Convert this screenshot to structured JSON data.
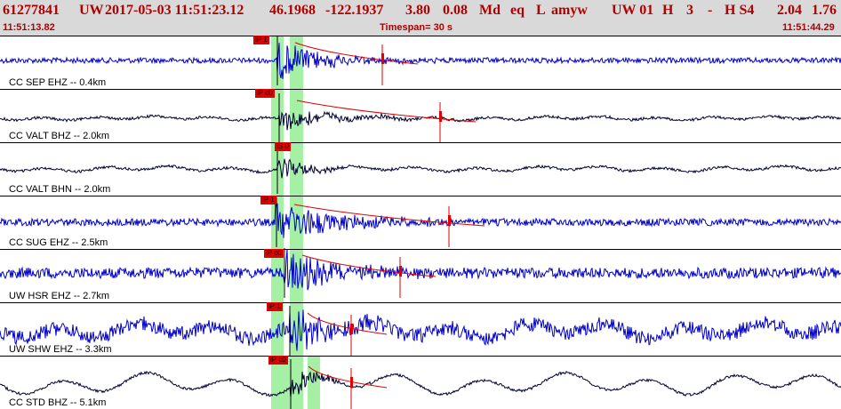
{
  "header": {
    "event_id": "61277841",
    "network": "UW",
    "datetime": "2017-05-03 11:51:23.12",
    "lat": "46.1968",
    "lon": "-122.1937",
    "depth": "3.80",
    "mag": "0.08",
    "magtype": "Md",
    "etype": "eq",
    "flag": "L",
    "author": "amyw",
    "tail1": "UW 01",
    "tail2": "H",
    "tail3": "3",
    "tail4": "-",
    "tail5": "H S4",
    "tail6": "2.04",
    "tail7": "1.76"
  },
  "time_bar": {
    "start": "11:51:13.82",
    "timespan": "Timespan=  30 s",
    "end": "11:51:44.29"
  },
  "colors": {
    "header_bg": "#d9d9d9",
    "header_text": "#b00000",
    "trace_blue": "#0000cc",
    "trace_dark": "#000033",
    "pick_red": "#e00000",
    "band_green": "#a6f0a6"
  },
  "traces": [
    {
      "label": "CC SEP EHZ -- 0.4km",
      "pick": "iP 1",
      "color": "blue"
    },
    {
      "label": "CC VALT BHZ -- 2.0km",
      "pick": "iP c0",
      "color": "dark"
    },
    {
      "label": "CC VALT BHN -- 2.0km",
      "pick": "iS 0",
      "color": "dark"
    },
    {
      "label": "CC SUG EHZ -- 2.5km",
      "pick": "iP 1",
      "color": "blue"
    },
    {
      "label": "UW HSR EHZ -- 2.7km",
      "pick": "iP c0",
      "color": "blue"
    },
    {
      "label": "UW SHW EHZ -- 3.3km",
      "pick": "iP 1",
      "color": "blue"
    },
    {
      "label": "CC STD BHZ -- 5.1km",
      "pick": "iP c0",
      "color": "dark"
    }
  ]
}
